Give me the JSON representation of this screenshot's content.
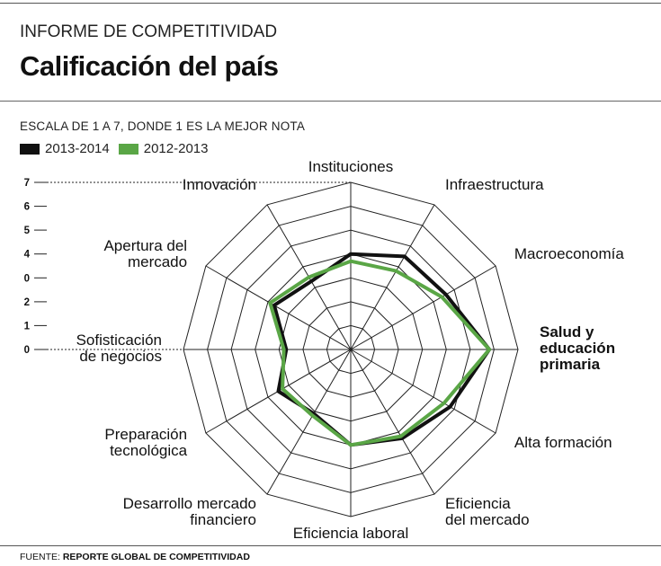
{
  "header": {
    "kicker": "INFORME DE COMPETITIVIDAD",
    "title": "Calificación del país"
  },
  "chart_data": {
    "type": "radar",
    "subtitle": "ESCALA DE 1 A 7, DONDE 1 ES LA MEJOR NOTA",
    "categories": [
      "Instituciones",
      "Infraestructura",
      "Macroeconomía",
      "Salud y educación primaria",
      "Alta formación",
      "Eficiencia del mercado",
      "Eficiencia laboral",
      "Desarrollo mercado financiero",
      "Preparación tecnológica",
      "Sofisticación de negocios",
      "Apertura del mercado",
      "Innovación"
    ],
    "category_lines": [
      [
        "Instituciones"
      ],
      [
        "Infraestructura"
      ],
      [
        "Macroeconomía"
      ],
      [
        "Salud y",
        "educación",
        "primaria"
      ],
      [
        "Alta formación"
      ],
      [
        "Eficiencia",
        "del mercado"
      ],
      [
        "Eficiencia laboral"
      ],
      [
        "Desarrollo mercado",
        "financiero"
      ],
      [
        "Preparación",
        "tecnológica"
      ],
      [
        "Sofisticación",
        "de negocios"
      ],
      [
        "Apertura del",
        "mercado"
      ],
      [
        "Innovación"
      ]
    ],
    "highlighted_category": "Salud y educación primaria",
    "scale_ticks": [
      "7",
      "6",
      "5",
      "4",
      "0",
      "2",
      "1",
      "0"
    ],
    "rmax": 7,
    "grid_levels": 7,
    "series": [
      {
        "name": "2013-2014",
        "color": "#111111",
        "values": [
          4.0,
          4.5,
          4.6,
          5.8,
          4.8,
          4.3,
          4.0,
          3.1,
          3.5,
          2.7,
          3.7,
          3.3
        ]
      },
      {
        "name": "2012-2013",
        "color": "#5aa646",
        "values": [
          3.7,
          3.8,
          4.4,
          5.8,
          4.5,
          4.2,
          4.0,
          3.2,
          3.3,
          2.8,
          3.9,
          3.5
        ]
      }
    ],
    "source_prefix": "FUENTE:",
    "source": "REPORTE GLOBAL DE COMPETITIVIDAD"
  }
}
